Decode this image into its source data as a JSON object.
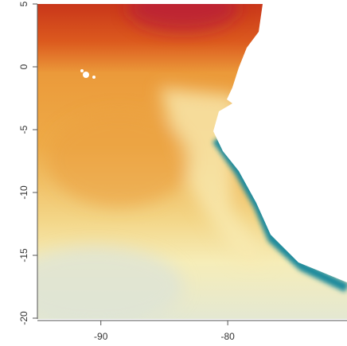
{
  "chart_data": {
    "type": "raster",
    "xlim": [
      -95,
      -70.6
    ],
    "ylim": [
      -20,
      5
    ],
    "xticks": [
      -90,
      -80
    ],
    "yticks": [
      -20,
      -15,
      -10,
      -5,
      0,
      5
    ]
  }
}
